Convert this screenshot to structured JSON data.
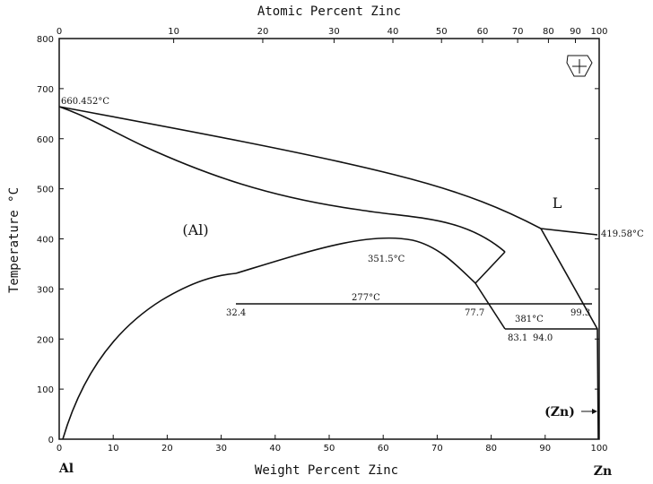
{
  "diagram": {
    "top_axis": {
      "title": "Atomic Percent Zinc",
      "ticks": [
        "0",
        "10",
        "20",
        "30",
        "40",
        "50",
        "60",
        "70",
        "80",
        "90",
        "100"
      ],
      "tick_values_wt": [
        0,
        21.2,
        37.7,
        50.9,
        61.8,
        70.8,
        78.4,
        84.9,
        90.6,
        95.6,
        100
      ]
    },
    "bottom_axis": {
      "title": "Weight Percent Zinc",
      "ticks": [
        "0",
        "10",
        "20",
        "30",
        "40",
        "50",
        "60",
        "70",
        "80",
        "90",
        "100"
      ],
      "left_element": "Al",
      "right_element": "Zn"
    },
    "y_axis": {
      "title": "Temperature °C",
      "ticks": [
        "0",
        "100",
        "200",
        "300",
        "400",
        "500",
        "600",
        "700",
        "800"
      ],
      "range": [
        0,
        800
      ]
    },
    "x_range": [
      0,
      100
    ],
    "phases": {
      "liquid": "L",
      "al": "(Al)",
      "zn": "(Zn)"
    },
    "annotations": {
      "al_melt": "660.452°C",
      "zn_melt": "419.58°C",
      "eutectic_temp": "381°C",
      "monotectoid_temp": "277°C",
      "miscibility_peak": "351.5°C",
      "c_83_1": "83.1",
      "c_94_0": "94.0",
      "c_32_4": "32.4",
      "c_77_7": "77.7",
      "c_99_3": "99.3"
    }
  }
}
